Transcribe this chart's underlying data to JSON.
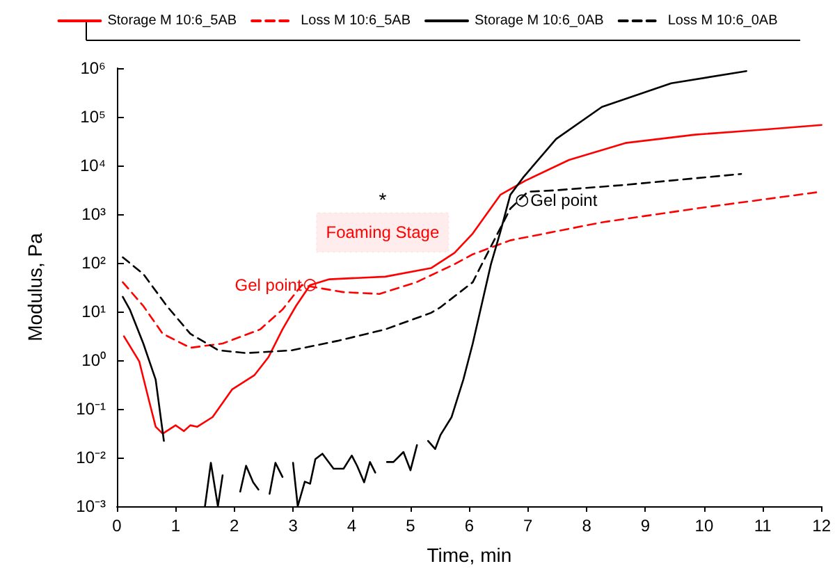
{
  "chart_data": {
    "type": "line",
    "xlabel": "Time, min",
    "ylabel": "Modulus, Pa",
    "log": "y",
    "legend": "top",
    "grid": false,
    "marker": "none",
    "xlim": [
      0,
      12
    ],
    "xticks": [
      0,
      1,
      2,
      3,
      4,
      5,
      6,
      7,
      8,
      9,
      10,
      11,
      12
    ],
    "ylim": [
      0.001,
      1000000
    ],
    "yticks": [
      {
        "value": 0.001,
        "label": "10⁻³"
      },
      {
        "value": 0.01,
        "label": "10⁻²"
      },
      {
        "value": 0.1,
        "label": "10⁻¹"
      },
      {
        "value": 1,
        "label": "10⁰"
      },
      {
        "value": 10,
        "label": "10¹"
      },
      {
        "value": 100,
        "label": "10²"
      },
      {
        "value": 1000,
        "label": "10³"
      },
      {
        "value": 10000,
        "label": "10⁴"
      },
      {
        "value": 100000,
        "label": "10⁵"
      },
      {
        "value": 1000000,
        "label": "10⁶"
      }
    ],
    "series": [
      {
        "name": "Storage M 10:6_5AB",
        "color": "#ff0000",
        "line_style": "solid",
        "x": [
          0.12,
          0.38,
          0.54,
          0.66,
          0.78,
          1.0,
          1.14,
          1.25,
          1.37,
          1.63,
          1.96,
          2.34,
          2.58,
          2.82,
          3.05,
          3.29,
          3.62,
          4.57,
          5.35,
          5.75,
          6.06,
          6.53,
          6.96,
          7.7,
          8.66,
          9.85,
          11.03,
          12.0
        ],
        "values": [
          3.1,
          0.95,
          0.16,
          0.043,
          0.031,
          0.046,
          0.035,
          0.046,
          0.043,
          0.068,
          0.25,
          0.49,
          1.15,
          4.3,
          13,
          35,
          46,
          52,
          78,
          160,
          400,
          2500,
          4900,
          13000,
          29000,
          43000,
          55000,
          68000
        ]
      },
      {
        "name": "Loss M 10:6_5AB",
        "color": "#ff0000",
        "line_style": "dashed",
        "x": [
          0.1,
          0.45,
          0.78,
          1.25,
          1.8,
          2.44,
          2.82,
          3.15,
          3.86,
          4.47,
          5.1,
          5.75,
          6.06,
          6.7,
          8.26,
          9.85,
          12.0
        ],
        "values": [
          40,
          13,
          3.5,
          1.8,
          2.2,
          4.3,
          11,
          35,
          25,
          23,
          40,
          94,
          150,
          290,
          680,
          1300,
          2900
        ]
      },
      {
        "name": "Storage M 10:6_0AB",
        "color": "#000000",
        "line_style": "solid",
        "x": [
          0.1,
          0.22,
          0.45,
          0.66,
          0.8,
          1.1,
          1.5,
          1.6,
          1.72,
          1.8,
          1.95,
          2.1,
          2.2,
          2.32,
          2.41,
          2.5,
          2.6,
          2.7,
          2.82,
          2.9,
          3.0,
          3.08,
          3.2,
          3.29,
          3.38,
          3.5,
          3.69,
          3.86,
          4.0,
          4.09,
          4.21,
          4.31,
          4.4,
          4.5,
          4.6,
          4.71,
          4.88,
          5.0,
          5.11,
          5.2,
          5.3,
          5.42,
          5.51,
          5.7,
          5.9,
          6.06,
          6.37,
          6.53,
          6.7,
          6.93,
          7.48,
          8.26,
          9.44,
          10.72
        ],
        "values": [
          20,
          11,
          2.2,
          0.4,
          0.022,
          null,
          0.001,
          0.0078,
          0.001,
          0.0043,
          null,
          0.002,
          0.0068,
          0.0031,
          0.0022,
          null,
          0.0018,
          0.0078,
          0.004,
          null,
          0.0078,
          0.001,
          0.0032,
          0.0029,
          0.0093,
          0.012,
          0.0059,
          0.0059,
          0.011,
          0.0068,
          0.0031,
          0.0081,
          0.0049,
          null,
          0.0081,
          0.0081,
          0.013,
          0.0055,
          0.018,
          null,
          0.022,
          0.015,
          0.029,
          0.068,
          0.4,
          2.2,
          94,
          430,
          2500,
          5900,
          35000,
          160000,
          490000,
          870000
        ]
      },
      {
        "name": "Loss M 10:6_0AB",
        "color": "#000000",
        "line_style": "dashed",
        "x": [
          0.1,
          0.45,
          0.85,
          1.25,
          1.73,
          2.2,
          2.98,
          3.76,
          4.57,
          5.35,
          5.5,
          6.06,
          6.13,
          6.7,
          7.0,
          7.48,
          8.66,
          10.63
        ],
        "values": [
          130,
          59,
          13,
          3.5,
          1.6,
          1.4,
          1.6,
          2.5,
          4.3,
          9.4,
          12,
          40,
          59,
          1300,
          2900,
          3100,
          4000,
          6700
        ]
      }
    ],
    "bands": [
      {
        "axis": "x",
        "from": 3.4,
        "to": 5.65,
        "label": "Foaming Stage",
        "color": "#ff0000"
      }
    ],
    "annotations": [
      {
        "text": "Gel point",
        "x": 3.29,
        "y": 35
      },
      {
        "text": "Gel point",
        "x": 6.9,
        "y": 1900
      },
      "*"
    ]
  }
}
